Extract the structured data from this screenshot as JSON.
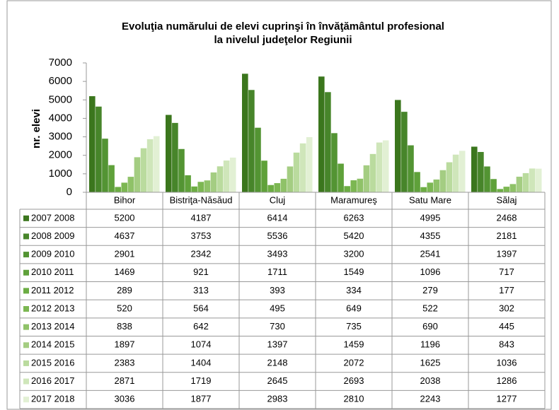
{
  "chart_data": {
    "type": "bar",
    "title": "Evoluţia numărului de elevi cuprinşi în învăţământul profesional",
    "subtitle": "la nivelul judeţelor Regiunii",
    "y_label": "nr. elevi",
    "categories": [
      "Bihor",
      "Bistriţa-Năsăud",
      "Cluj",
      "Maramureş",
      "Satu Mare",
      "Sălaj"
    ],
    "ylim": [
      0,
      7000
    ],
    "yticks": [
      0,
      1000,
      2000,
      3000,
      4000,
      5000,
      6000,
      7000
    ],
    "grid": false,
    "series": [
      {
        "name": "2007 2008",
        "color": "#3b761d",
        "values": [
          5200,
          4187,
          6414,
          6263,
          4995,
          2468
        ]
      },
      {
        "name": "2008 2009",
        "color": "#47852a",
        "values": [
          4637,
          3753,
          5536,
          5420,
          4355,
          2181
        ]
      },
      {
        "name": "2009 2010",
        "color": "#539433",
        "values": [
          2901,
          2342,
          3493,
          3200,
          2541,
          1397
        ]
      },
      {
        "name": "2010 2011",
        "color": "#5fa13a",
        "values": [
          1469,
          921,
          1711,
          1549,
          1096,
          717
        ]
      },
      {
        "name": "2011 2012",
        "color": "#6cad43",
        "values": [
          289,
          313,
          393,
          334,
          279,
          177
        ]
      },
      {
        "name": "2012 2013",
        "color": "#7cb752",
        "values": [
          520,
          564,
          495,
          649,
          522,
          302
        ]
      },
      {
        "name": "2013 2014",
        "color": "#8fc268",
        "values": [
          838,
          642,
          730,
          735,
          690,
          445
        ]
      },
      {
        "name": "2014 2015",
        "color": "#a4cd82",
        "values": [
          1897,
          1074,
          1397,
          1459,
          1196,
          843
        ]
      },
      {
        "name": "2015 2016",
        "color": "#badb9e",
        "values": [
          2383,
          1404,
          2148,
          2072,
          1625,
          1036
        ]
      },
      {
        "name": "2016 2017",
        "color": "#cfe6ba",
        "values": [
          2871,
          1719,
          2645,
          2693,
          2038,
          1286
        ]
      },
      {
        "name": "2017 2018",
        "color": "#e2f0d4",
        "values": [
          3036,
          1877,
          2983,
          2810,
          2243,
          1277
        ]
      }
    ]
  }
}
